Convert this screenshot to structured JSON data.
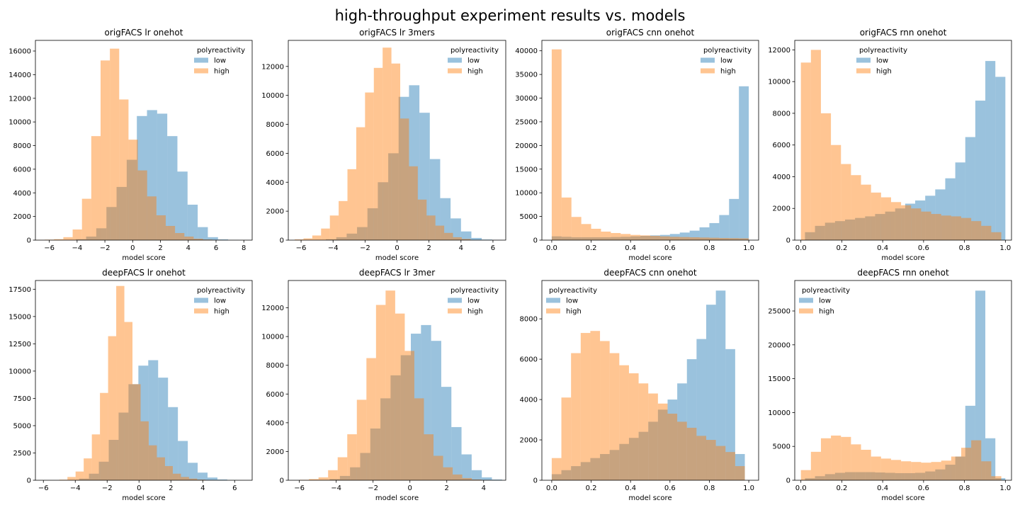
{
  "figure": {
    "title": "high-throughput experiment results vs. models"
  },
  "colors": {
    "low": "#1f77b4",
    "high": "#ff7f0e",
    "bar_opacity": 0.45
  },
  "legend_title": "polyreactivity",
  "chart_data": [
    {
      "type": "bar",
      "title": "origFACS lr onehot",
      "xlabel": "model score",
      "ylabel": "",
      "xlim": [
        -7,
        8.6
      ],
      "ylim": [
        0,
        16900
      ],
      "xticks": [
        -6,
        -4,
        -2,
        0,
        2,
        4,
        6,
        8
      ],
      "yticks": [
        0,
        2000,
        4000,
        6000,
        8000,
        10000,
        12000,
        14000,
        16000
      ],
      "legend": {
        "loc": "upper right"
      },
      "series": [
        {
          "name": "low",
          "bins": [
            -7.0,
            -6.27,
            -5.54,
            -4.81,
            -4.08,
            -3.35,
            -2.62,
            -1.89,
            -1.16,
            -0.43,
            0.3,
            1.03,
            1.76,
            2.49,
            3.22,
            3.95,
            4.68,
            5.41,
            6.14,
            6.87,
            7.6
          ],
          "values": [
            0,
            0,
            0,
            0,
            80,
            300,
            1000,
            2800,
            4500,
            6800,
            10500,
            11000,
            10700,
            8800,
            5800,
            3000,
            1100,
            250,
            60,
            10
          ]
        },
        {
          "name": "high",
          "bins": [
            -7.0,
            -6.33,
            -5.66,
            -4.99,
            -4.32,
            -3.65,
            -2.98,
            -2.31,
            -1.64,
            -0.97,
            -0.3,
            0.37,
            1.04,
            1.71,
            2.38,
            3.05,
            3.72,
            4.39,
            5.06,
            5.73,
            6.4
          ],
          "values": [
            20,
            40,
            80,
            250,
            900,
            3500,
            8800,
            15200,
            16200,
            11900,
            8500,
            5900,
            3700,
            2100,
            1200,
            600,
            300,
            120,
            50,
            20
          ]
        }
      ]
    },
    {
      "type": "bar",
      "title": "origFACS lr 3mers",
      "xlabel": "model score",
      "ylabel": "",
      "xlim": [
        -6.8,
        6.8
      ],
      "ylim": [
        0,
        13800
      ],
      "xticks": [
        -6,
        -4,
        -2,
        0,
        2,
        4,
        6
      ],
      "yticks": [
        0,
        2000,
        4000,
        6000,
        8000,
        10000,
        12000
      ],
      "legend": {
        "loc": "upper right"
      },
      "series": [
        {
          "name": "low",
          "bins": [
            -6.4,
            -5.75,
            -5.1,
            -4.45,
            -3.8,
            -3.15,
            -2.5,
            -1.85,
            -1.2,
            -0.55,
            0.1,
            0.75,
            1.4,
            2.05,
            2.7,
            3.35,
            4.0,
            4.65,
            5.3,
            5.95,
            6.6
          ],
          "values": [
            0,
            0,
            10,
            60,
            200,
            450,
            900,
            2200,
            4000,
            6000,
            9900,
            10700,
            8800,
            5600,
            2900,
            1500,
            600,
            150,
            40,
            10
          ]
        },
        {
          "name": "high",
          "bins": [
            -6.4,
            -5.85,
            -5.3,
            -4.75,
            -4.2,
            -3.65,
            -3.1,
            -2.55,
            -2.0,
            -1.45,
            -0.9,
            -0.35,
            0.2,
            0.75,
            1.3,
            1.85,
            2.4,
            2.95,
            3.5,
            4.05,
            4.6
          ],
          "values": [
            50,
            120,
            320,
            800,
            1700,
            2700,
            4900,
            7800,
            10200,
            11900,
            13300,
            12200,
            8400,
            5100,
            2800,
            1700,
            1000,
            500,
            200,
            80
          ]
        }
      ]
    },
    {
      "type": "bar",
      "title": "origFACS cnn onehot",
      "xlabel": "model score",
      "ylabel": "",
      "xlim": [
        -0.05,
        1.05
      ],
      "ylim": [
        0,
        42200
      ],
      "xticks": [
        0.0,
        0.2,
        0.4,
        0.6,
        0.8,
        1.0
      ],
      "yticks": [
        0,
        5000,
        10000,
        15000,
        20000,
        25000,
        30000,
        35000,
        40000
      ],
      "legend": {
        "loc": "upper right"
      },
      "series": [
        {
          "name": "low",
          "bins": [
            0,
            0.05,
            0.1,
            0.15,
            0.2,
            0.25,
            0.3,
            0.35,
            0.4,
            0.45,
            0.5,
            0.55,
            0.6,
            0.65,
            0.7,
            0.75,
            0.8,
            0.85,
            0.9,
            0.95,
            1.0
          ],
          "values": [
            800,
            700,
            600,
            600,
            600,
            600,
            650,
            700,
            800,
            900,
            1000,
            1100,
            1300,
            1600,
            2000,
            2700,
            3600,
            5300,
            8700,
            32500
          ]
        },
        {
          "name": "high",
          "bins": [
            0,
            0.05,
            0.1,
            0.15,
            0.2,
            0.25,
            0.3,
            0.35,
            0.4,
            0.45,
            0.5,
            0.55,
            0.6,
            0.65,
            0.7,
            0.75,
            0.8,
            0.85,
            0.9,
            0.95,
            1.0
          ],
          "values": [
            40300,
            9000,
            4900,
            3400,
            2400,
            1800,
            1500,
            1300,
            1100,
            1000,
            900,
            800,
            700,
            650,
            600,
            550,
            500,
            450,
            420,
            380
          ]
        }
      ]
    },
    {
      "type": "bar",
      "title": "origFACS rnn onehot",
      "xlabel": "model score",
      "ylabel": "",
      "xlim": [
        -0.03,
        1.03
      ],
      "ylim": [
        0,
        12600
      ],
      "xticks": [
        0.0,
        0.2,
        0.4,
        0.6,
        0.8,
        1.0
      ],
      "yticks": [
        0,
        2000,
        4000,
        6000,
        8000,
        10000,
        12000
      ],
      "legend": {
        "loc": "upper center"
      },
      "series": [
        {
          "name": "low",
          "bins": [
            0.02,
            0.069,
            0.118,
            0.167,
            0.216,
            0.265,
            0.314,
            0.363,
            0.412,
            0.461,
            0.51,
            0.559,
            0.608,
            0.657,
            0.706,
            0.755,
            0.804,
            0.853,
            0.902,
            0.951,
            1.0
          ],
          "values": [
            500,
            900,
            1100,
            1200,
            1300,
            1400,
            1500,
            1650,
            1800,
            2000,
            2300,
            2500,
            2800,
            3200,
            3900,
            4900,
            6500,
            8800,
            11300,
            10300
          ]
        },
        {
          "name": "high",
          "bins": [
            0.0,
            0.049,
            0.098,
            0.147,
            0.196,
            0.245,
            0.294,
            0.343,
            0.392,
            0.441,
            0.49,
            0.539,
            0.588,
            0.637,
            0.686,
            0.735,
            0.784,
            0.833,
            0.882,
            0.931,
            0.98
          ],
          "values": [
            11200,
            12000,
            8000,
            6000,
            4800,
            4100,
            3500,
            3000,
            2700,
            2400,
            2200,
            2000,
            1800,
            1650,
            1550,
            1500,
            1400,
            1200,
            900,
            500
          ]
        }
      ]
    },
    {
      "type": "bar",
      "title": "deepFACS lr onehot",
      "xlabel": "model score",
      "ylabel": "",
      "xlim": [
        -6.5,
        7.1
      ],
      "ylim": [
        0,
        18300
      ],
      "xticks": [
        -6,
        -4,
        -2,
        0,
        2,
        4,
        6
      ],
      "yticks": [
        0,
        2500,
        5000,
        7500,
        10000,
        12500,
        15000,
        17500
      ],
      "legend": {
        "loc": "upper right"
      },
      "series": [
        {
          "name": "low",
          "bins": [
            -5.0,
            -4.38,
            -3.76,
            -3.14,
            -2.52,
            -1.9,
            -1.28,
            -0.66,
            -0.04,
            0.58,
            1.2,
            1.82,
            2.44,
            3.06,
            3.68,
            4.3,
            4.92,
            5.54,
            6.16,
            6.78,
            7.4
          ],
          "values": [
            0,
            30,
            150,
            600,
            1700,
            3700,
            6200,
            8800,
            10500,
            11000,
            9400,
            6700,
            3600,
            1600,
            700,
            250,
            70,
            20,
            0,
            0
          ]
        },
        {
          "name": "high",
          "bins": [
            -5.0,
            -4.49,
            -3.98,
            -3.47,
            -2.96,
            -2.45,
            -1.94,
            -1.43,
            -0.92,
            -0.41,
            0.1,
            0.61,
            1.12,
            1.63,
            2.12,
            2.63,
            3.14,
            3.65,
            4.16,
            4.67,
            5.18
          ],
          "values": [
            50,
            300,
            800,
            2000,
            4200,
            8000,
            13200,
            17800,
            14500,
            8800,
            5400,
            3200,
            2100,
            1300,
            600,
            300,
            150,
            60,
            20,
            10
          ]
        }
      ]
    },
    {
      "type": "bar",
      "title": "deepFACS lr 3mer",
      "xlabel": "model score",
      "ylabel": "",
      "xlim": [
        -6.6,
        5.2
      ],
      "ylim": [
        0,
        13900
      ],
      "xticks": [
        -6,
        -4,
        -2,
        0,
        2,
        4
      ],
      "yticks": [
        0,
        2000,
        4000,
        6000,
        8000,
        10000,
        12000
      ],
      "legend": {
        "loc": "upper right"
      },
      "series": [
        {
          "name": "low",
          "bins": [
            -6.0,
            -5.45,
            -4.9,
            -4.35,
            -3.8,
            -3.25,
            -2.7,
            -2.15,
            -1.6,
            -1.05,
            -0.5,
            0.05,
            0.6,
            1.15,
            1.7,
            2.25,
            2.8,
            3.35,
            3.9,
            4.45,
            5.0
          ],
          "values": [
            0,
            0,
            20,
            80,
            300,
            900,
            1900,
            3600,
            5700,
            7300,
            8700,
            10200,
            10800,
            9700,
            6500,
            3700,
            1800,
            700,
            200,
            50
          ]
        },
        {
          "name": "high",
          "bins": [
            -6.0,
            -5.48,
            -4.96,
            -4.44,
            -3.92,
            -3.4,
            -2.88,
            -2.36,
            -1.84,
            -1.32,
            -0.8,
            -0.28,
            0.24,
            0.76,
            1.28,
            1.8,
            2.32,
            2.84,
            3.36,
            3.88,
            4.4
          ],
          "values": [
            30,
            80,
            200,
            700,
            1600,
            3200,
            5600,
            8500,
            12200,
            13200,
            11600,
            9000,
            5700,
            3200,
            1700,
            900,
            400,
            150,
            50,
            20
          ]
        }
      ]
    },
    {
      "type": "bar",
      "title": "deepFACS cnn onehot",
      "xlabel": "model score",
      "ylabel": "",
      "xlim": [
        -0.05,
        1.05
      ],
      "ylim": [
        0,
        9900
      ],
      "xticks": [
        0.0,
        0.2,
        0.4,
        0.6,
        0.8,
        1.0
      ],
      "yticks": [
        0,
        2000,
        4000,
        6000,
        8000
      ],
      "legend": {
        "loc": "upper left"
      },
      "series": [
        {
          "name": "low",
          "bins": [
            0,
            0.049,
            0.098,
            0.147,
            0.196,
            0.245,
            0.294,
            0.343,
            0.392,
            0.441,
            0.49,
            0.539,
            0.588,
            0.637,
            0.686,
            0.735,
            0.784,
            0.833,
            0.882,
            0.931,
            0.98
          ],
          "values": [
            300,
            500,
            700,
            900,
            1100,
            1300,
            1500,
            1800,
            2100,
            2400,
            2900,
            3500,
            4000,
            4800,
            6000,
            7000,
            8700,
            9400,
            6500,
            1300
          ]
        },
        {
          "name": "high",
          "bins": [
            0,
            0.049,
            0.098,
            0.147,
            0.196,
            0.245,
            0.294,
            0.343,
            0.392,
            0.441,
            0.49,
            0.539,
            0.588,
            0.637,
            0.686,
            0.735,
            0.784,
            0.833,
            0.882,
            0.931,
            0.98
          ],
          "values": [
            1100,
            4100,
            6300,
            7300,
            7400,
            6900,
            6300,
            5700,
            5300,
            4800,
            4300,
            3800,
            3300,
            2900,
            2600,
            2200,
            2000,
            1700,
            1400,
            700
          ]
        }
      ]
    },
    {
      "type": "bar",
      "title": "deepFACS rnn onehot",
      "xlabel": "model score",
      "ylabel": "",
      "xlim": [
        -0.03,
        1.03
      ],
      "ylim": [
        0,
        29500
      ],
      "xticks": [
        0.0,
        0.2,
        0.4,
        0.6,
        0.8,
        1.0
      ],
      "yticks": [
        0,
        5000,
        10000,
        15000,
        20000,
        25000
      ],
      "legend": {
        "loc": "upper left"
      },
      "series": [
        {
          "name": "low",
          "bins": [
            0.02,
            0.069,
            0.118,
            0.167,
            0.216,
            0.265,
            0.314,
            0.363,
            0.412,
            0.461,
            0.51,
            0.559,
            0.608,
            0.657,
            0.706,
            0.755,
            0.804,
            0.853,
            0.902,
            0.951,
            1.0
          ],
          "values": [
            300,
            600,
            900,
            1100,
            1200,
            1200,
            1200,
            1150,
            1100,
            1050,
            1050,
            1100,
            1300,
            1600,
            2300,
            3500,
            11000,
            28000,
            6200,
            300
          ]
        },
        {
          "name": "high",
          "bins": [
            0.0,
            0.049,
            0.098,
            0.147,
            0.196,
            0.245,
            0.294,
            0.343,
            0.392,
            0.441,
            0.49,
            0.539,
            0.588,
            0.637,
            0.686,
            0.735,
            0.784,
            0.833,
            0.882,
            0.931,
            0.98
          ],
          "values": [
            1500,
            4200,
            6200,
            6600,
            6400,
            5300,
            4500,
            3500,
            3200,
            3000,
            2800,
            2700,
            2600,
            2700,
            2900,
            3500,
            4800,
            5900,
            2800,
            600
          ]
        }
      ]
    }
  ]
}
